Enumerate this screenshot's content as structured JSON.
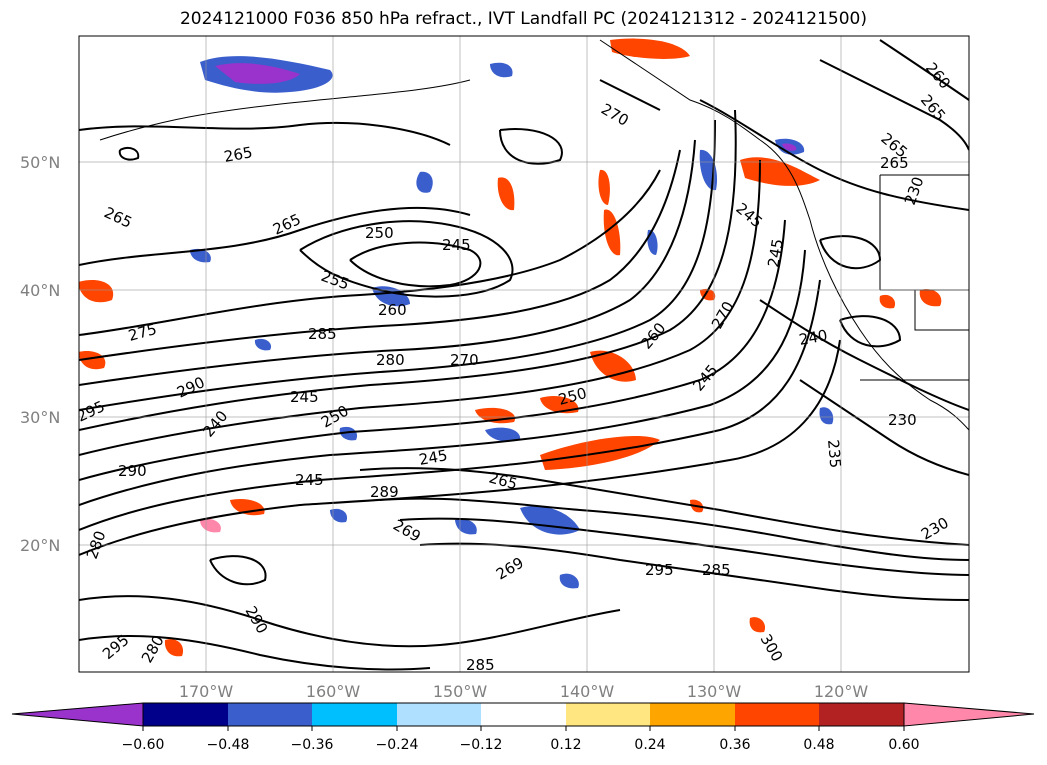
{
  "title": "2024121000 F036 850 hPa refract., IVT Landfall PC (2024121312 - 2024121500)",
  "map": {
    "lat_labels": [
      "50°N",
      "40°N",
      "30°N",
      "20°N"
    ],
    "lon_labels": [
      "170°W",
      "160°W",
      "150°W",
      "140°W",
      "130°W",
      "120°W"
    ],
    "contour_labels": [
      "270",
      "265",
      "265",
      "265",
      "260",
      "265",
      "265",
      "245",
      "245",
      "240",
      "250",
      "245",
      "265",
      "255",
      "260",
      "285",
      "260",
      "270",
      "275",
      "280",
      "270",
      "290",
      "245",
      "250",
      "250",
      "245",
      "295",
      "240",
      "245",
      "245",
      "265",
      "235",
      "230",
      "290",
      "280",
      "289",
      "269",
      "269",
      "230",
      "295",
      "285",
      "300",
      "290",
      "295",
      "280",
      "285",
      "230"
    ]
  },
  "colorbar": {
    "ticks": [
      "−0.60",
      "−0.48",
      "−0.36",
      "−0.24",
      "−0.12",
      "0.12",
      "0.24",
      "0.36",
      "0.48",
      "0.60"
    ],
    "colors": [
      "#9933cc",
      "#00008b",
      "#3a5fcd",
      "#00bfff",
      "#b0e0ff",
      "#ffffff",
      "#ffe680",
      "#ffa500",
      "#ff4500",
      "#b22222",
      "#ff88aa"
    ]
  }
}
